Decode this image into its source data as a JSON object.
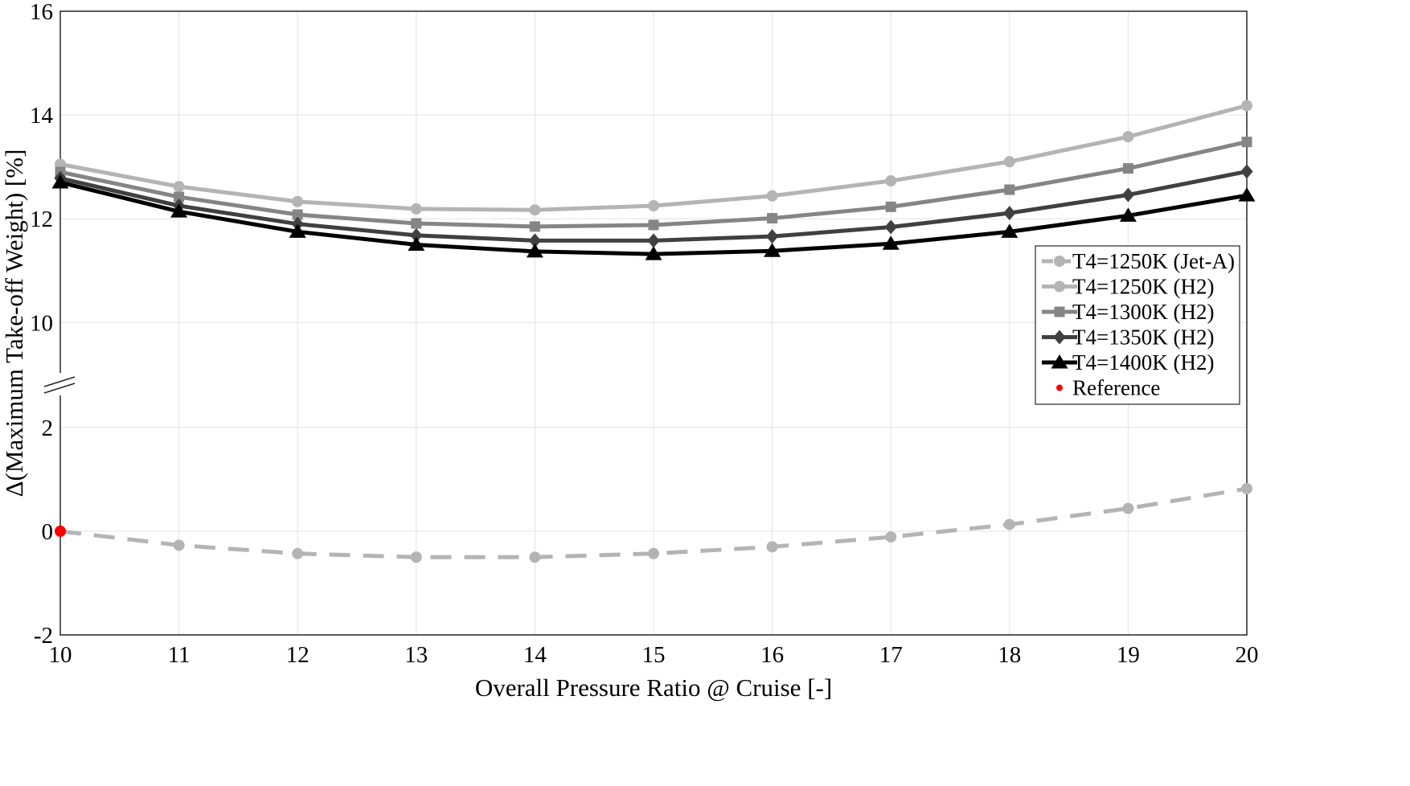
{
  "chart_data": {
    "type": "line",
    "xlabel": "Overall Pressure Ratio @ Cruise [-]",
    "ylabel": "Δ(Maximum Take-off Weight) [%]",
    "xlim": [
      10,
      20
    ],
    "x_ticks": [
      "10",
      "11",
      "12",
      "13",
      "14",
      "15",
      "16",
      "17",
      "18",
      "19",
      "20"
    ],
    "y_axis_break": "between 2 and 10",
    "y_ticks_upper": [
      "10",
      "12",
      "14",
      "16"
    ],
    "y_ticks_lower": [
      "-2",
      "0",
      "2"
    ],
    "ylim_upper": [
      10,
      16
    ],
    "ylim_lower": [
      -2,
      2
    ],
    "grid": true,
    "legend_position": "right",
    "x": [
      10,
      11,
      12,
      13,
      14,
      15,
      16,
      17,
      18,
      19,
      20
    ],
    "series": [
      {
        "name": "T4=1250K (Jet-A)",
        "color": "#b4b4b4",
        "marker": "circle",
        "dashed": true,
        "values": [
          0.0,
          -0.27,
          -0.43,
          -0.5,
          -0.5,
          -0.43,
          -0.3,
          -0.11,
          0.13,
          0.44,
          0.82
        ]
      },
      {
        "name": "T4=1250K (H2)",
        "color": "#b4b4b4",
        "marker": "circle",
        "dashed": false,
        "values": [
          13.05,
          12.62,
          12.33,
          12.19,
          12.17,
          12.25,
          12.44,
          12.73,
          13.1,
          13.58,
          14.18
        ]
      },
      {
        "name": "T4=1300K (H2)",
        "color": "#858585",
        "marker": "square",
        "dashed": false,
        "values": [
          12.9,
          12.42,
          12.08,
          11.91,
          11.85,
          11.88,
          12.01,
          12.23,
          12.56,
          12.97,
          13.48
        ]
      },
      {
        "name": "T4=1350K (H2)",
        "color": "#404040",
        "marker": "diamond",
        "dashed": false,
        "values": [
          12.78,
          12.25,
          11.9,
          11.68,
          11.58,
          11.58,
          11.66,
          11.84,
          12.11,
          12.46,
          12.91
        ]
      },
      {
        "name": "T4=1400K (H2)",
        "color": "#000000",
        "marker": "triangle",
        "dashed": false,
        "values": [
          12.7,
          12.14,
          11.75,
          11.5,
          11.37,
          11.32,
          11.38,
          11.52,
          11.75,
          12.06,
          12.45
        ]
      }
    ],
    "reference": {
      "name": "Reference",
      "color": "#ff0000",
      "x": 10,
      "y": 0
    }
  }
}
